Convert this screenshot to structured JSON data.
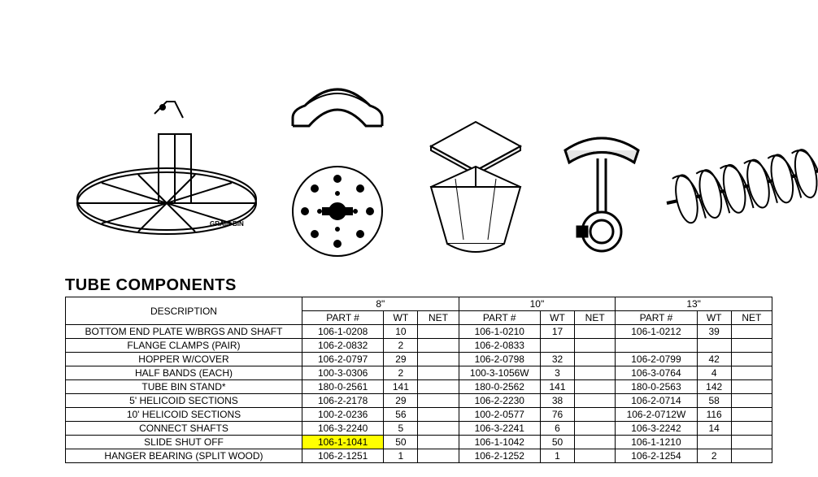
{
  "title": "TUBE COMPONENTS",
  "diagram_label": "GRAIN BIN",
  "table": {
    "sizes": [
      "8\"",
      "10\"",
      "13\""
    ],
    "headers": {
      "description": "DESCRIPTION",
      "part": "PART #",
      "wt": "WT",
      "net": "NET"
    },
    "rows": [
      {
        "desc": "BOTTOM END PLATE W/BRGS AND SHAFT",
        "s8": {
          "part": "106-1-0208",
          "wt": "10",
          "net": ""
        },
        "s10": {
          "part": "106-1-0210",
          "wt": "17",
          "net": ""
        },
        "s13": {
          "part": "106-1-0212",
          "wt": "39",
          "net": ""
        }
      },
      {
        "desc": "FLANGE CLAMPS (PAIR)",
        "s8": {
          "part": "106-2-0832",
          "wt": "2",
          "net": ""
        },
        "s10": {
          "part": "106-2-0833",
          "wt": "",
          "net": ""
        },
        "s13": {
          "part": "",
          "wt": "",
          "net": ""
        }
      },
      {
        "desc": "HOPPER W/COVER",
        "s8": {
          "part": "106-2-0797",
          "wt": "29",
          "net": ""
        },
        "s10": {
          "part": "106-2-0798",
          "wt": "32",
          "net": ""
        },
        "s13": {
          "part": "106-2-0799",
          "wt": "42",
          "net": ""
        }
      },
      {
        "desc": "HALF BANDS (EACH)",
        "s8": {
          "part": "100-3-0306",
          "wt": "2",
          "net": ""
        },
        "s10": {
          "part": "100-3-1056W",
          "wt": "3",
          "net": ""
        },
        "s13": {
          "part": "106-3-0764",
          "wt": "4",
          "net": ""
        }
      },
      {
        "desc": "TUBE BIN STAND*",
        "s8": {
          "part": "180-0-2561",
          "wt": "141",
          "net": ""
        },
        "s10": {
          "part": "180-0-2562",
          "wt": "141",
          "net": ""
        },
        "s13": {
          "part": "180-0-2563",
          "wt": "142",
          "net": ""
        }
      },
      {
        "desc": "5' HELICOID SECTIONS",
        "s8": {
          "part": "106-2-2178",
          "wt": "29",
          "net": ""
        },
        "s10": {
          "part": "106-2-2230",
          "wt": "38",
          "net": ""
        },
        "s13": {
          "part": "106-2-0714",
          "wt": "58",
          "net": ""
        }
      },
      {
        "desc": "10' HELICOID SECTIONS",
        "s8": {
          "part": "100-2-0236",
          "wt": "56",
          "net": ""
        },
        "s10": {
          "part": "100-2-0577",
          "wt": "76",
          "net": ""
        },
        "s13": {
          "part": "106-2-0712W",
          "wt": "116",
          "net": ""
        }
      },
      {
        "desc": "CONNECT SHAFTS",
        "s8": {
          "part": "106-3-2240",
          "wt": "5",
          "net": ""
        },
        "s10": {
          "part": "106-3-2241",
          "wt": "6",
          "net": ""
        },
        "s13": {
          "part": "106-3-2242",
          "wt": "14",
          "net": ""
        }
      },
      {
        "desc": "SLIDE SHUT OFF",
        "s8": {
          "part": "106-1-1041",
          "wt": "50",
          "net": "",
          "highlight": true
        },
        "s10": {
          "part": "106-1-1042",
          "wt": "50",
          "net": ""
        },
        "s13": {
          "part": "106-1-1210",
          "wt": "",
          "net": ""
        }
      },
      {
        "desc": "HANGER BEARING (SPLIT WOOD)",
        "s8": {
          "part": "106-2-1251",
          "wt": "1",
          "net": ""
        },
        "s10": {
          "part": "106-2-1252",
          "wt": "1",
          "net": ""
        },
        "s13": {
          "part": "106-2-1254",
          "wt": "2",
          "net": ""
        }
      }
    ]
  },
  "style": {
    "highlight_color": "#ffff00",
    "border_color": "#000000",
    "font_size_table": 12,
    "font_size_title": 20,
    "col_widths": {
      "desc": 290,
      "part": 100,
      "wt": 42,
      "net": 50
    }
  }
}
